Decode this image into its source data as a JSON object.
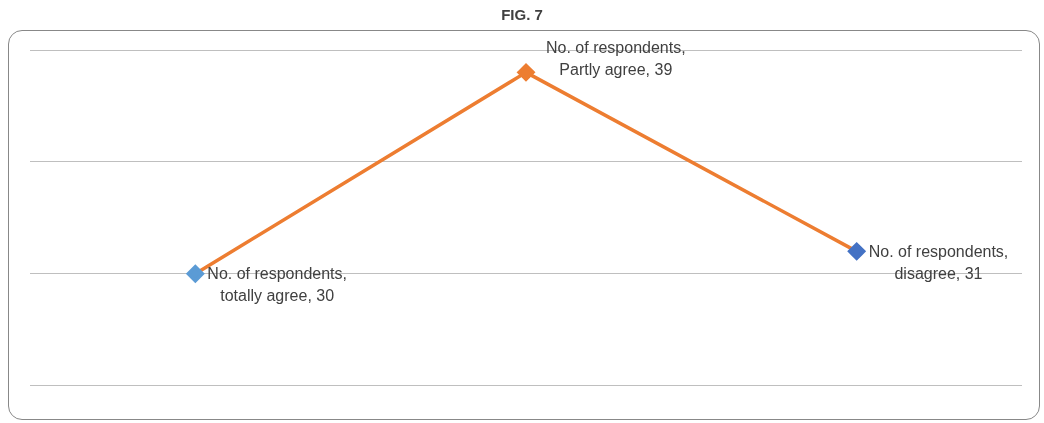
{
  "chart_data": {
    "type": "line",
    "title": "FIG. 7",
    "categories": [
      null,
      null,
      null
    ],
    "series": [
      {
        "color": "#ed7d31",
        "colors": [
          "#5b9bd5",
          "#ed7d31",
          "#4472c4"
        ],
        "values": [
          30,
          39,
          31
        ],
        "value_labels": [
          "No. of respondents, totally agree, 30",
          "No. of respondents, Partly agree, 39",
          "No. of respondents, disagree, 31"
        ]
      }
    ],
    "marker": "diamond",
    "ylim": [
      25,
      40
    ],
    "yticks": [
      {
        "value": 25,
        "label": null
      },
      {
        "value": 30,
        "label": null
      },
      {
        "value": 35,
        "label": null
      },
      {
        "value": 40,
        "label": null
      }
    ],
    "grid": "y",
    "legend": false
  }
}
